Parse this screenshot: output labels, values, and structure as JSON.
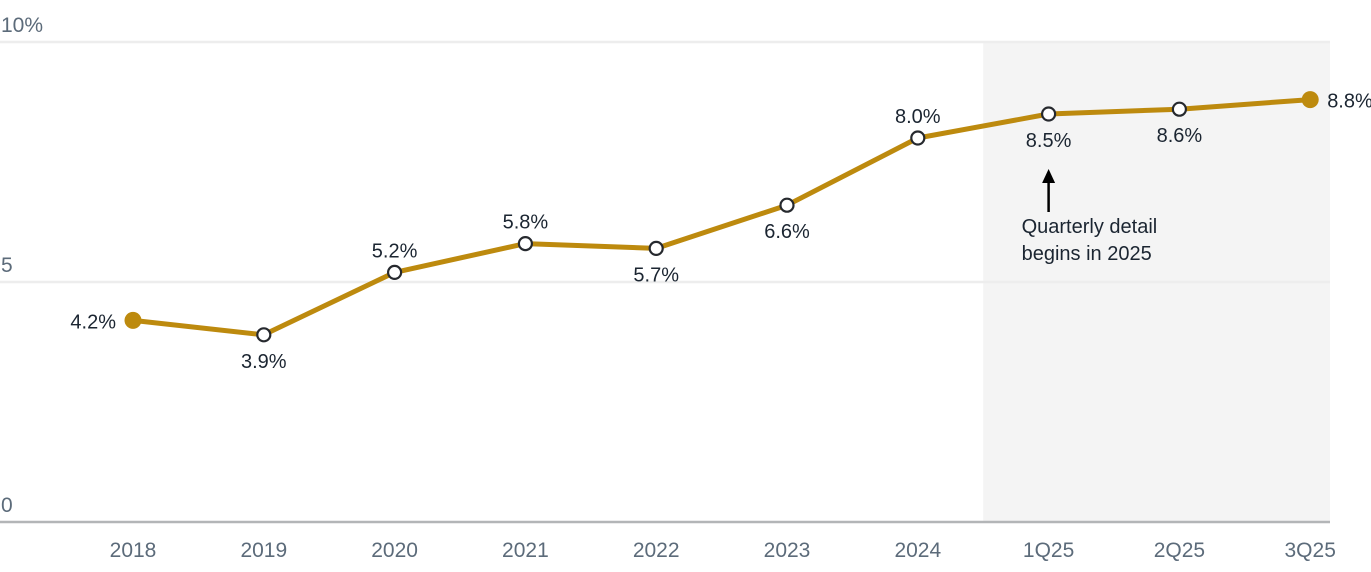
{
  "chart_data": {
    "type": "line",
    "categories": [
      "2018",
      "2019",
      "2020",
      "2021",
      "2022",
      "2023",
      "2024",
      "1Q25",
      "2Q25",
      "3Q25"
    ],
    "values": [
      4.2,
      3.9,
      5.2,
      5.8,
      5.7,
      6.6,
      8.0,
      8.5,
      8.6,
      8.8
    ],
    "point_labels": [
      "4.2%",
      "3.9%",
      "5.2%",
      "5.8%",
      "5.7%",
      "6.6%",
      "8.0%",
      "8.5%",
      "8.6%",
      "8.8%"
    ],
    "label_placement": [
      "left",
      "below",
      "above",
      "above",
      "below",
      "below",
      "above",
      "below",
      "below",
      "right"
    ],
    "marker_filled": [
      true,
      false,
      false,
      false,
      false,
      false,
      false,
      false,
      false,
      true
    ],
    "title": "",
    "xlabel": "",
    "ylabel": "",
    "ylim": [
      0,
      10
    ],
    "y_ticks": [
      {
        "value": 0,
        "label": "0"
      },
      {
        "value": 5,
        "label": "5"
      },
      {
        "value": 10,
        "label": "10%"
      }
    ],
    "grid": "horizontal",
    "legend": "none",
    "shaded_region": {
      "from_category": "1Q25",
      "starts": "midway between 2024 and 1Q25",
      "extends_to": "right edge of plot"
    },
    "annotation": {
      "lines": [
        "Quarterly detail",
        "begins in 2025"
      ],
      "arrow": "up",
      "anchor_category": "1Q25"
    },
    "colors": {
      "line": "#BD8A0E",
      "marker_fill": "#BD8A0E",
      "marker_open_fill": "#FFFFFF",
      "marker_open_stroke": "#26292E",
      "data_label": "#1B2531",
      "axis_label": "#5C6B7A",
      "gridline": "#EDEDED",
      "axis_line": "#B3B5B7",
      "band": "#F4F4F4",
      "annotation_text": "#1B2531",
      "arrow": "#000000"
    }
  }
}
